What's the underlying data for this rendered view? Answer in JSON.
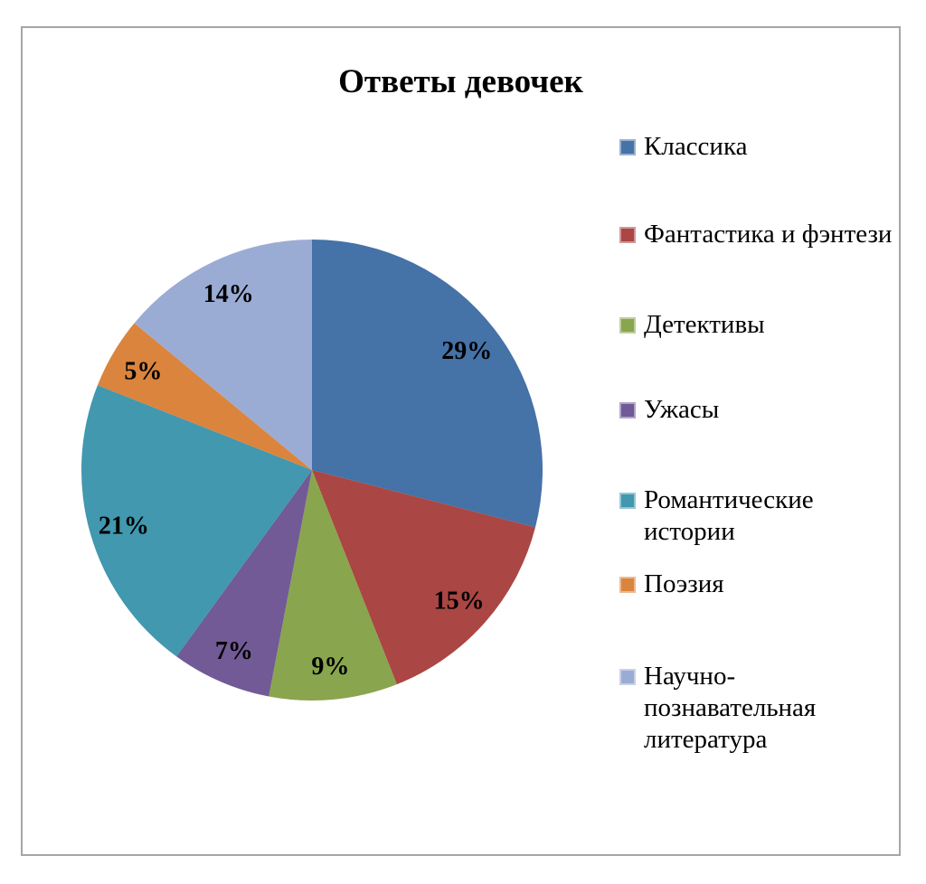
{
  "frame": {
    "border_color": "#A6A6A6"
  },
  "chart_data": {
    "type": "pie",
    "title": "Ответы девочек",
    "categories": [
      "Классика",
      "Фантастика и фэнтези",
      "Детективы",
      "Ужасы",
      "Романтические истории",
      "Поэзия",
      "Научно-познавательная литература"
    ],
    "values": [
      29,
      15,
      9,
      7,
      21,
      5,
      14
    ],
    "labels": [
      "29%",
      "15%",
      "9%",
      "7%",
      "21%",
      "5%",
      "14%"
    ],
    "unit": "%",
    "colors": [
      "#4572A7",
      "#AA4643",
      "#89A54E",
      "#715A96",
      "#4198AF",
      "#DB843D",
      "#9BACD4"
    ],
    "start_angle_deg": 0,
    "direction": "clockwise",
    "legend_position": "right",
    "label_color": "#000000",
    "title_color": "#000000"
  }
}
